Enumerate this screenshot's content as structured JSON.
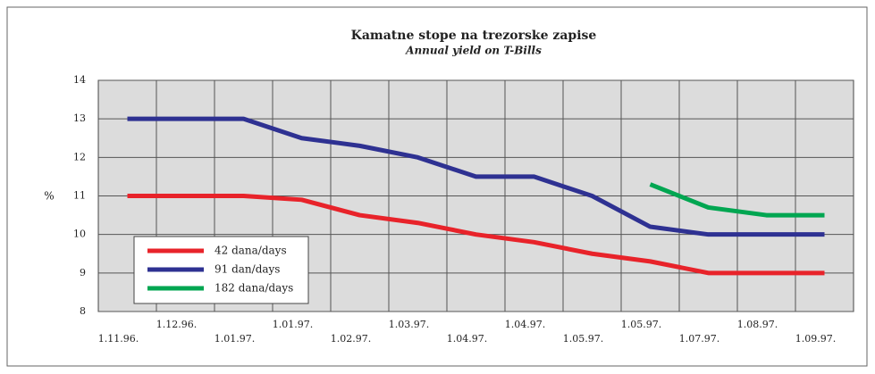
{
  "chart_data": {
    "type": "line",
    "title": "Kamatne stope na trezorske zapise",
    "subtitle": "Annual yield on T-Bills",
    "y_label": "%",
    "categories": [
      "1.11.96.",
      "1.12.96.",
      "1.01.97.",
      "1.01.97.",
      "1.02.97.",
      "1.03.97.",
      "1.04.97.",
      "1.04.97.",
      "1.05.97.",
      "1.05.97.",
      "1.07.97.",
      "1.08.97.",
      "1.09.97."
    ],
    "series": [
      {
        "name": "42 dana/days",
        "color": "#e8232a",
        "values": [
          11,
          11,
          11,
          10.9,
          10.5,
          10.3,
          10,
          9.8,
          9.5,
          9.3,
          9,
          9,
          9
        ]
      },
      {
        "name": "91 dan/days",
        "color": "#2e3192",
        "values": [
          13,
          13,
          13,
          12.5,
          12.3,
          12,
          11.5,
          11.5,
          11,
          10.2,
          10,
          10,
          10
        ]
      },
      {
        "name": "182 dana/days",
        "color": "#00a651",
        "values": [
          null,
          null,
          null,
          null,
          null,
          null,
          null,
          null,
          null,
          11.3,
          10.7,
          10.5,
          10.5
        ]
      }
    ],
    "ylim": [
      8,
      14
    ],
    "yticks": [
      8,
      9,
      10,
      11,
      12,
      13,
      14
    ],
    "grid": true,
    "legend": "lower left"
  }
}
